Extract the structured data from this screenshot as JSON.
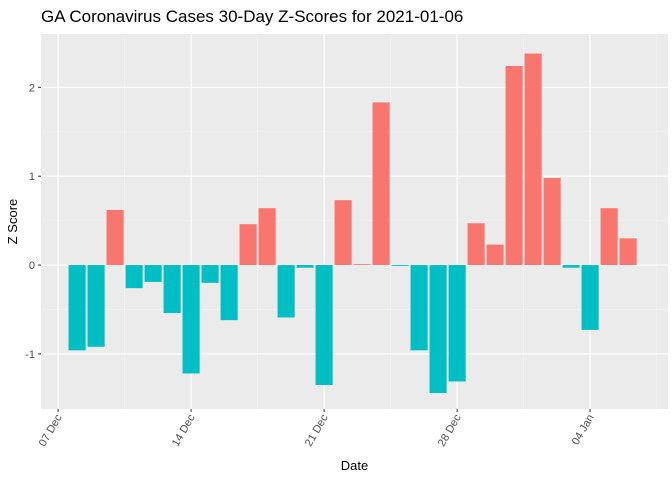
{
  "chart_data": {
    "type": "bar",
    "title": "GA Coronavirus Cases 30-Day Z-Scores for 2021-01-06",
    "xlabel": "Date",
    "ylabel": "Z Score",
    "x_ticks": [
      {
        "label": "07 Dec",
        "day": 0
      },
      {
        "label": "14 Dec",
        "day": 7
      },
      {
        "label": "21 Dec",
        "day": 14
      },
      {
        "label": "28 Dec",
        "day": 21
      },
      {
        "label": "04 Jan",
        "day": 28
      }
    ],
    "y_ticks": [
      -1,
      0,
      1,
      2
    ],
    "ylim": [
      -1.62,
      2.6
    ],
    "xlim_days": [
      -0.9,
      32.1
    ],
    "grid": true,
    "legend": "none",
    "colors": {
      "positive": "#F8766D",
      "negative": "#00BFC4",
      "panel": "#EBEBEB",
      "grid_major": "#FFFFFF",
      "grid_minor": "#F5F5F5"
    },
    "points": [
      {
        "date": "2020-12-08",
        "day": 1,
        "value": -0.96
      },
      {
        "date": "2020-12-09",
        "day": 2,
        "value": -0.92
      },
      {
        "date": "2020-12-10",
        "day": 3,
        "value": 0.62
      },
      {
        "date": "2020-12-11",
        "day": 4,
        "value": -0.26
      },
      {
        "date": "2020-12-12",
        "day": 5,
        "value": -0.19
      },
      {
        "date": "2020-12-13",
        "day": 6,
        "value": -0.54
      },
      {
        "date": "2020-12-14",
        "day": 7,
        "value": -1.22
      },
      {
        "date": "2020-12-15",
        "day": 8,
        "value": -0.2
      },
      {
        "date": "2020-12-16",
        "day": 9,
        "value": -0.62
      },
      {
        "date": "2020-12-17",
        "day": 10,
        "value": 0.46
      },
      {
        "date": "2020-12-18",
        "day": 11,
        "value": 0.64
      },
      {
        "date": "2020-12-19",
        "day": 12,
        "value": -0.59
      },
      {
        "date": "2020-12-20",
        "day": 13,
        "value": -0.03
      },
      {
        "date": "2020-12-21",
        "day": 14,
        "value": -1.35
      },
      {
        "date": "2020-12-22",
        "day": 15,
        "value": 0.73
      },
      {
        "date": "2020-12-23",
        "day": 16,
        "value": 0.01
      },
      {
        "date": "2020-12-24",
        "day": 17,
        "value": 1.83
      },
      {
        "date": "2020-12-25",
        "day": 18,
        "value": -0.01
      },
      {
        "date": "2020-12-26",
        "day": 19,
        "value": -0.96
      },
      {
        "date": "2020-12-27",
        "day": 20,
        "value": -1.44
      },
      {
        "date": "2020-12-28",
        "day": 21,
        "value": -1.31
      },
      {
        "date": "2020-12-29",
        "day": 22,
        "value": 0.47
      },
      {
        "date": "2020-12-30",
        "day": 23,
        "value": 0.23
      },
      {
        "date": "2020-12-31",
        "day": 24,
        "value": 2.24
      },
      {
        "date": "2021-01-01",
        "day": 25,
        "value": 2.38
      },
      {
        "date": "2021-01-02",
        "day": 26,
        "value": 0.98
      },
      {
        "date": "2021-01-03",
        "day": 27,
        "value": -0.03
      },
      {
        "date": "2021-01-04",
        "day": 28,
        "value": -0.73
      },
      {
        "date": "2021-01-05",
        "day": 29,
        "value": 0.64
      },
      {
        "date": "2021-01-06",
        "day": 30,
        "value": 0.3
      }
    ]
  }
}
